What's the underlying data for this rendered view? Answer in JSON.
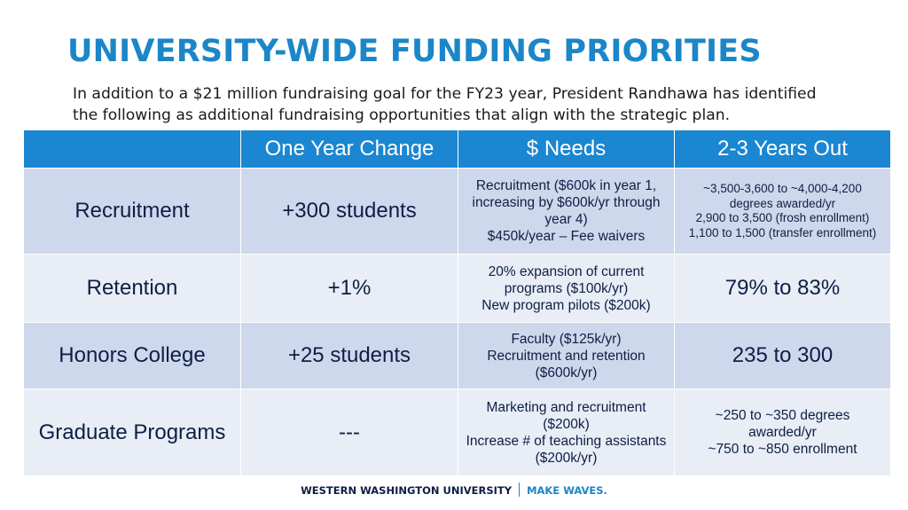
{
  "title": "UNIVERSITY-WIDE FUNDING PRIORITIES",
  "intro": "In addition to a $21 million fundraising goal for the FY23 year, President Randhawa has identified the following as additional fundraising opportunities that align with the strategic plan.",
  "table": {
    "headers": [
      "",
      "One Year Change",
      "$ Needs",
      "2-3 Years Out"
    ],
    "rows": [
      {
        "area": "Recruitment",
        "change": "+300 students",
        "needs": [
          "Recruitment ($600k in year 1, increasing by $600k/yr through year 4)",
          "$450k/year – Fee waivers"
        ],
        "outlook": [
          "~3,500-3,600 to ~4,000-4,200 degrees awarded/yr",
          "2,900 to 3,500 (frosh enrollment)",
          "1,100 to 1,500 (transfer enrollment)"
        ]
      },
      {
        "area": "Retention",
        "change": "+1%",
        "needs": [
          "20% expansion of current programs ($100k/yr)",
          "New program pilots ($200k)"
        ],
        "outlook": [
          "79% to 83%"
        ]
      },
      {
        "area": "Honors College",
        "change": "+25 students",
        "needs": [
          "Faculty ($125k/yr)",
          "Recruitment and retention ($600k/yr)"
        ],
        "outlook": [
          "235 to 300"
        ]
      },
      {
        "area": "Graduate Programs",
        "change": "---",
        "needs": [
          "Marketing and recruitment ($200k)",
          "Increase # of teaching assistants ($200k/yr)"
        ],
        "outlook": [
          "~250 to ~350 degrees awarded/yr",
          "~750 to ~850 enrollment"
        ]
      }
    ]
  },
  "footer": {
    "university": "WESTERN WASHINGTON UNIVERSITY",
    "tagline": "MAKE WAVES."
  },
  "colors": {
    "title": "#1b86c8",
    "header_bg": "#1b86d1",
    "row_dark": "#cdd8ec",
    "row_light": "#e8edf6",
    "text": "#0e1f44"
  }
}
